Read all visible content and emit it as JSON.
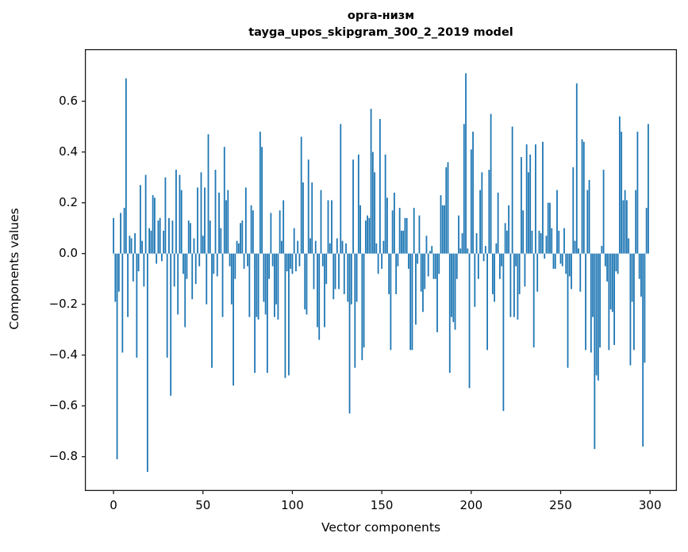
{
  "figure": {
    "background": "#ffffff",
    "spine_color": "#1a1a1a",
    "text_color": "#000000"
  },
  "chart_data": {
    "type": "bar",
    "title_line1": "орга-низм",
    "title_line2": "tayga_upos_skipgram_300_2_2019 model",
    "xlabel": "Vector components",
    "ylabel": "Components values",
    "legend": "none",
    "grid": false,
    "bar_color": "#1f77b4",
    "n_components": 300,
    "xlim": [
      -16,
      315
    ],
    "ylim": [
      -0.935,
      0.805
    ],
    "x_ticks": [
      0,
      50,
      100,
      150,
      200,
      250,
      300
    ],
    "x_tick_labels": [
      "0",
      "50",
      "100",
      "150",
      "200",
      "250",
      "300"
    ],
    "y_ticks": [
      0.6,
      0.4,
      0.2,
      0.0,
      -0.2,
      -0.4,
      -0.6,
      -0.8
    ],
    "y_tick_labels": [
      "0.6",
      "0.4",
      "0.2",
      "0.0",
      "−0.2",
      "−0.4",
      "−0.6",
      "−0.8"
    ],
    "values": [
      0.14,
      -0.19,
      -0.81,
      -0.15,
      0.16,
      -0.39,
      0.18,
      0.69,
      -0.25,
      0.07,
      0.06,
      -0.11,
      0.08,
      -0.41,
      -0.07,
      0.27,
      0.05,
      -0.13,
      0.31,
      -0.86,
      0.1,
      0.09,
      0.23,
      0.22,
      -0.04,
      0.13,
      0.14,
      -0.03,
      0.09,
      0.3,
      -0.41,
      0.14,
      -0.56,
      0.13,
      -0.13,
      0.33,
      -0.24,
      0.31,
      0.25,
      -0.08,
      -0.29,
      -0.1,
      0.13,
      0.12,
      -0.18,
      0.06,
      -0.12,
      0.26,
      -0.05,
      0.32,
      0.07,
      0.26,
      -0.2,
      0.47,
      0.13,
      -0.45,
      -0.08,
      0.33,
      -0.09,
      0.24,
      0.1,
      -0.25,
      0.42,
      0.21,
      0.25,
      -0.05,
      -0.2,
      -0.52,
      -0.1,
      0.05,
      0.04,
      0.12,
      0.13,
      -0.06,
      0.26,
      -0.05,
      -0.25,
      0.19,
      0.17,
      -0.47,
      -0.25,
      -0.26,
      0.48,
      0.42,
      -0.19,
      -0.24,
      -0.47,
      -0.1,
      0.16,
      -0.05,
      -0.25,
      -0.2,
      -0.26,
      0.17,
      0.05,
      0.21,
      -0.49,
      -0.07,
      -0.48,
      -0.06,
      -0.08,
      0.1,
      -0.07,
      0.05,
      -0.05,
      0.46,
      0.28,
      -0.22,
      -0.24,
      0.37,
      0.06,
      0.28,
      -0.14,
      0.05,
      -0.29,
      -0.34,
      0.25,
      -0.05,
      -0.29,
      -0.12,
      0.21,
      0.04,
      0.21,
      -0.18,
      -0.14,
      0.06,
      -0.14,
      0.51,
      0.05,
      -0.16,
      0.04,
      -0.19,
      -0.63,
      -0.2,
      0.37,
      -0.45,
      -0.19,
      0.39,
      0.19,
      -0.42,
      -0.37,
      0.13,
      0.15,
      0.14,
      0.57,
      0.4,
      0.32,
      0.04,
      -0.08,
      0.53,
      -0.06,
      0.05,
      0.39,
      0.22,
      -0.16,
      -0.38,
      0.17,
      0.24,
      -0.16,
      -0.05,
      0.18,
      0.09,
      0.09,
      0.14,
      0.14,
      -0.06,
      -0.38,
      -0.38,
      0.18,
      -0.28,
      -0.04,
      0.15,
      -0.15,
      -0.23,
      -0.14,
      0.07,
      -0.09,
      0.01,
      0.03,
      -0.1,
      -0.1,
      -0.31,
      -0.08,
      0.23,
      0.19,
      0.19,
      0.34,
      0.36,
      -0.47,
      -0.25,
      -0.27,
      -0.3,
      -0.1,
      0.15,
      0.02,
      0.08,
      0.51,
      0.71,
      0.02,
      -0.53,
      0.41,
      0.48,
      -0.21,
      0.08,
      -0.1,
      0.25,
      0.32,
      -0.03,
      0.03,
      -0.38,
      0.33,
      0.55,
      -0.16,
      -0.19,
      0.04,
      0.24,
      -0.1,
      -0.05,
      -0.62,
      0.12,
      0.09,
      0.19,
      -0.25,
      0.5,
      -0.25,
      -0.05,
      -0.26,
      -0.16,
      0.38,
      0.17,
      -0.13,
      0.43,
      0.32,
      0.39,
      0.09,
      -0.37,
      0.43,
      -0.15,
      0.09,
      0.08,
      0.44,
      -0.02,
      0.07,
      0.2,
      0.2,
      0.1,
      -0.06,
      -0.06,
      0.25,
      0.09,
      -0.04,
      -0.05,
      0.1,
      -0.08,
      -0.45,
      -0.09,
      -0.14,
      0.34,
      0.05,
      0.67,
      0.02,
      -0.15,
      0.45,
      0.44,
      -0.38,
      0.25,
      0.29,
      -0.39,
      -0.25,
      -0.77,
      -0.48,
      -0.5,
      -0.37,
      0.03,
      0.33,
      -0.05,
      -0.11,
      -0.38,
      -0.22,
      -0.23,
      -0.36,
      -0.07,
      -0.08,
      0.54,
      0.48,
      0.21,
      0.25,
      0.21,
      0.06,
      -0.44,
      -0.19,
      -0.38,
      0.25,
      0.48,
      -0.1,
      -0.17,
      -0.76,
      -0.43,
      0.18,
      0.51
    ]
  }
}
